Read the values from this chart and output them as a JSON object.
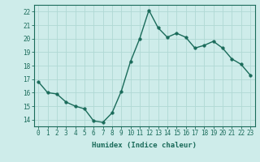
{
  "x": [
    0,
    1,
    2,
    3,
    4,
    5,
    6,
    7,
    8,
    9,
    10,
    11,
    12,
    13,
    14,
    15,
    16,
    17,
    18,
    19,
    20,
    21,
    22,
    23
  ],
  "y": [
    16.8,
    16.0,
    15.9,
    15.3,
    15.0,
    14.8,
    13.9,
    13.8,
    14.5,
    16.1,
    18.3,
    20.0,
    22.1,
    20.8,
    20.1,
    20.4,
    20.1,
    19.3,
    19.5,
    19.8,
    19.3,
    18.5,
    18.1,
    17.3
  ],
  "line_color": "#1a6b5a",
  "marker": "o",
  "markersize": 2.5,
  "linewidth": 1.0,
  "bg_color": "#ceecea",
  "grid_color": "#b0d8d4",
  "tick_color": "#1a6b5a",
  "xlabel": "Humidex (Indice chaleur)",
  "xlim": [
    -0.5,
    23.5
  ],
  "ylim": [
    13.5,
    22.5
  ],
  "yticks": [
    14,
    15,
    16,
    17,
    18,
    19,
    20,
    21,
    22
  ],
  "xticks": [
    0,
    1,
    2,
    3,
    4,
    5,
    6,
    7,
    8,
    9,
    10,
    11,
    12,
    13,
    14,
    15,
    16,
    17,
    18,
    19,
    20,
    21,
    22,
    23
  ],
  "fontsize_label": 6.5,
  "fontsize_tick": 5.5
}
